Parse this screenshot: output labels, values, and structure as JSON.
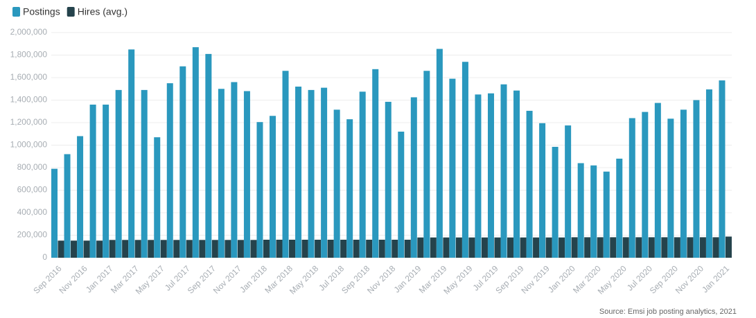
{
  "chart_data": {
    "type": "bar",
    "source": "Source: Emsi job posting analytics, 2021",
    "categories": [
      "Sep 2016",
      null,
      "Nov 2016",
      null,
      "Jan 2017",
      null,
      "Mar 2017",
      null,
      "May 2017",
      null,
      "Jul 2017",
      null,
      "Sep 2017",
      null,
      "Nov 2017",
      null,
      "Jan 2018",
      null,
      "Mar 2018",
      null,
      "May 2018",
      null,
      "Jul 2018",
      null,
      "Sep 2018",
      null,
      "Nov 2018",
      null,
      "Jan 2019",
      null,
      "Mar 2019",
      null,
      "May 2019",
      null,
      "Jul 2019",
      null,
      "Sep 2019",
      null,
      "Nov 2019",
      null,
      "Jan 2020",
      null,
      "Mar 2020",
      null,
      "May 2020",
      null,
      "Jul 2020",
      null,
      "Sep 2020",
      null,
      "Nov 2020",
      null,
      "Jan 2021"
    ],
    "series": [
      {
        "name": "Postings",
        "color": "#2a98be",
        "values": [
          790000,
          920000,
          1080000,
          1360000,
          1360000,
          1490000,
          1850000,
          1490000,
          1070000,
          1550000,
          1700000,
          1870000,
          1810000,
          1500000,
          1560000,
          1480000,
          1205000,
          1260000,
          1660000,
          1520000,
          1490000,
          1510000,
          1315000,
          1230000,
          1475000,
          1675000,
          1385000,
          1120000,
          1425000,
          1660000,
          1855000,
          1590000,
          1740000,
          1450000,
          1460000,
          1540000,
          1485000,
          1305000,
          1195000,
          985000,
          1175000,
          840000,
          820000,
          765000,
          880000,
          1240000,
          1295000,
          1375000,
          1235000,
          1315000,
          1400000,
          1495000,
          1575000
        ]
      },
      {
        "name": "Hires (avg.)",
        "color": "#25434c",
        "values": [
          152000,
          152000,
          152000,
          152000,
          158000,
          158000,
          158000,
          158000,
          158000,
          158000,
          158000,
          158000,
          158000,
          158000,
          158000,
          158000,
          160000,
          160000,
          160000,
          160000,
          160000,
          160000,
          160000,
          160000,
          160000,
          160000,
          160000,
          160000,
          180000,
          180000,
          180000,
          180000,
          180000,
          180000,
          180000,
          180000,
          180000,
          180000,
          180000,
          180000,
          182000,
          182000,
          182000,
          182000,
          182000,
          182000,
          182000,
          182000,
          182000,
          182000,
          182000,
          182000,
          188000
        ]
      }
    ],
    "ylim": [
      0,
      2000000
    ],
    "yticks": [
      0,
      {
        "value": 200000,
        "label": "200,000"
      },
      {
        "value": 400000,
        "label": "400,000"
      },
      {
        "value": 600000,
        "label": "600,000"
      },
      {
        "value": 800000,
        "label": "800,000"
      },
      {
        "value": 1000000,
        "label": "1,000,000"
      },
      {
        "value": 1200000,
        "label": "1,200,000"
      },
      {
        "value": 1400000,
        "label": "1,400,000"
      },
      {
        "value": 1600000,
        "label": "1,600,000"
      },
      {
        "value": 1800000,
        "label": "1,800,000"
      },
      {
        "value": 2000000,
        "label": "2,000,000"
      }
    ],
    "grid": true,
    "legend": "top-left"
  }
}
